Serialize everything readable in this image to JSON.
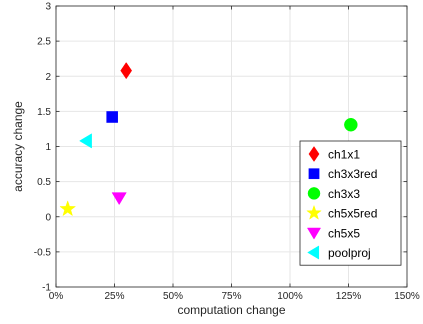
{
  "chart_data": {
    "type": "scatter",
    "title": "",
    "xlabel": "computation change",
    "ylabel": "accuracy change",
    "xlim": [
      0,
      150
    ],
    "ylim": [
      -1,
      3
    ],
    "x_unit": "%",
    "xticks": [
      0,
      25,
      50,
      75,
      100,
      125,
      150
    ],
    "xtick_labels": [
      "0%",
      "25%",
      "50%",
      "75%",
      "100%",
      "125%",
      "150%"
    ],
    "yticks": [
      -1,
      -0.5,
      0,
      0.5,
      1,
      1.5,
      2,
      2.5,
      3
    ],
    "ytick_labels": [
      "-1",
      "-0.5",
      "0",
      "0.5",
      "1",
      "1.5",
      "2",
      "2.5",
      "3"
    ],
    "grid": true,
    "legend_position": "bottom-right",
    "series": [
      {
        "name": "ch1x1",
        "marker": "diamond",
        "color": "#ff0000",
        "x": 30,
        "y": 2.08
      },
      {
        "name": "ch3x3red",
        "marker": "square",
        "color": "#0000ff",
        "x": 24,
        "y": 1.42
      },
      {
        "name": "ch3x3",
        "marker": "circle",
        "color": "#00ff00",
        "x": 126,
        "y": 1.31
      },
      {
        "name": "ch5x5red",
        "marker": "star",
        "color": "#ffff00",
        "x": 5,
        "y": 0.11
      },
      {
        "name": "ch5x5",
        "marker": "triangle-down",
        "color": "#ff00ff",
        "x": 27,
        "y": 0.27
      },
      {
        "name": "poolproj",
        "marker": "triangle-left",
        "color": "#00ffff",
        "x": 13,
        "y": 1.08
      }
    ]
  }
}
